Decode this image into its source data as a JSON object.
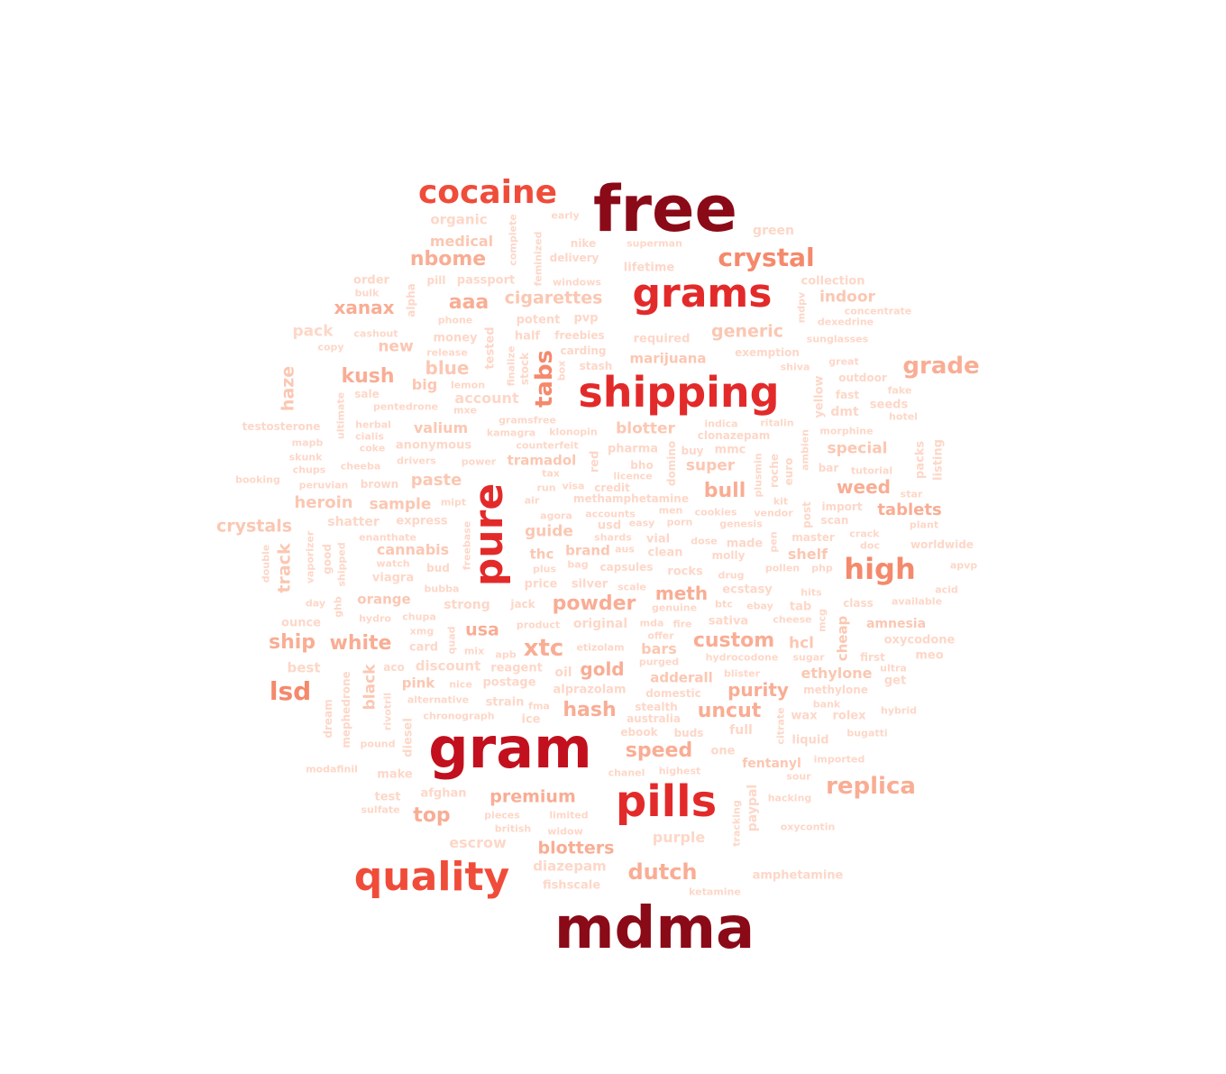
{
  "colors": {
    "t1": "#8b0a18",
    "t2": "#c2101e",
    "t3": "#e32a2a",
    "t4": "#f04c3a",
    "t5": "#f5896c",
    "t6": "#f9ad94",
    "t7": "#fbc7b2",
    "t8": "#fdd7c8"
  },
  "words": [
    {
      "text": "free",
      "tier": "t1"
    },
    {
      "text": "mdma",
      "tier": "t1"
    },
    {
      "text": "gram",
      "tier": "t2"
    },
    {
      "text": "pills",
      "tier": "t3"
    },
    {
      "text": "shipping",
      "tier": "t3"
    },
    {
      "text": "grams",
      "tier": "t3"
    },
    {
      "text": "pure",
      "tier": "t3"
    },
    {
      "text": "cocaine",
      "tier": "t4"
    },
    {
      "text": "quality",
      "tier": "t4"
    },
    {
      "text": "crystal",
      "tier": "t5"
    },
    {
      "text": "high",
      "tier": "t5"
    },
    {
      "text": "replica",
      "tier": "t6"
    },
    {
      "text": "grade",
      "tier": "t6"
    },
    {
      "text": "lsd",
      "tier": "t5"
    },
    {
      "text": "nbome",
      "tier": "t6"
    },
    {
      "text": "tabs",
      "tier": "t5"
    },
    {
      "text": "xtc",
      "tier": "t6"
    },
    {
      "text": "hash",
      "tier": "t6"
    },
    {
      "text": "speed",
      "tier": "t6"
    },
    {
      "text": "custom",
      "tier": "t6"
    },
    {
      "text": "ship",
      "tier": "t6"
    },
    {
      "text": "white",
      "tier": "t6"
    },
    {
      "text": "top",
      "tier": "t6"
    },
    {
      "text": "dutch",
      "tier": "t6"
    },
    {
      "text": "premium",
      "tier": "t6"
    },
    {
      "text": "blotters",
      "tier": "t6"
    },
    {
      "text": "kush",
      "tier": "t6"
    },
    {
      "text": "xanax",
      "tier": "t6"
    },
    {
      "text": "aaa",
      "tier": "t6"
    },
    {
      "text": "bull",
      "tier": "t6"
    },
    {
      "text": "weed",
      "tier": "t6"
    },
    {
      "text": "tablets",
      "tier": "t6"
    },
    {
      "text": "powder",
      "tier": "t6"
    },
    {
      "text": "meth",
      "tier": "t6"
    },
    {
      "text": "gold",
      "tier": "t6"
    },
    {
      "text": "uncut",
      "tier": "t6"
    },
    {
      "text": "purity",
      "tier": "t6"
    },
    {
      "text": "usa",
      "tier": "t6"
    },
    {
      "text": "cigarettes",
      "tier": "t7"
    },
    {
      "text": "blue",
      "tier": "t7"
    },
    {
      "text": "generic",
      "tier": "t7"
    },
    {
      "text": "heroin",
      "tier": "t7"
    },
    {
      "text": "crystals",
      "tier": "t7"
    },
    {
      "text": "sample",
      "tier": "t7"
    },
    {
      "text": "paste",
      "tier": "t7"
    },
    {
      "text": "haze",
      "tier": "t7"
    },
    {
      "text": "track",
      "tier": "t7"
    },
    {
      "text": "medical",
      "tier": "t7"
    },
    {
      "text": "organic",
      "tier": "t8"
    },
    {
      "text": "indoor",
      "tier": "t7"
    },
    {
      "text": "special",
      "tier": "t7"
    },
    {
      "text": "super",
      "tier": "t7"
    },
    {
      "text": "blotter",
      "tier": "t7"
    },
    {
      "text": "valium",
      "tier": "t7"
    },
    {
      "text": "cannabis",
      "tier": "t7"
    },
    {
      "text": "guide",
      "tier": "t7"
    },
    {
      "text": "pack",
      "tier": "t8"
    },
    {
      "text": "new",
      "tier": "t7"
    },
    {
      "text": "account",
      "tier": "t8"
    },
    {
      "text": "hcl",
      "tier": "t7"
    },
    {
      "text": "bars",
      "tier": "t7"
    },
    {
      "text": "ethylone",
      "tier": "t7"
    },
    {
      "text": "shelf",
      "tier": "t7"
    },
    {
      "text": "amnesia",
      "tier": "t7"
    },
    {
      "text": "orange",
      "tier": "t7"
    },
    {
      "text": "thc",
      "tier": "t7"
    },
    {
      "text": "brand",
      "tier": "t7"
    },
    {
      "text": "escrow",
      "tier": "t8"
    },
    {
      "text": "purple",
      "tier": "t8"
    },
    {
      "text": "diazepam",
      "tier": "t8"
    },
    {
      "text": "marijuana",
      "tier": "t7"
    },
    {
      "text": "big",
      "tier": "t7"
    },
    {
      "text": "black",
      "tier": "t7"
    },
    {
      "text": "pink",
      "tier": "t7"
    },
    {
      "text": "best",
      "tier": "t8"
    },
    {
      "text": "cheap",
      "tier": "t7"
    },
    {
      "text": "tramadol",
      "tier": "t7"
    },
    {
      "text": "fentanyl",
      "tier": "t7"
    },
    {
      "text": "adderall",
      "tier": "t7"
    },
    {
      "text": "original",
      "tier": "t8"
    },
    {
      "text": "discount",
      "tier": "t8"
    },
    {
      "text": "shatter",
      "tier": "t8"
    },
    {
      "text": "green",
      "tier": "t8"
    },
    {
      "text": "lifetime",
      "tier": "t8"
    },
    {
      "text": "collection",
      "tier": "t8"
    },
    {
      "text": "order",
      "tier": "t8"
    },
    {
      "text": "pill",
      "tier": "t8"
    },
    {
      "text": "passport",
      "tier": "t8"
    },
    {
      "text": "superman",
      "tier": "t8"
    },
    {
      "text": "nike",
      "tier": "t8"
    },
    {
      "text": "delivery",
      "tier": "t8"
    },
    {
      "text": "windows",
      "tier": "t8"
    },
    {
      "text": "bulk",
      "tier": "t8"
    },
    {
      "text": "phone",
      "tier": "t8"
    },
    {
      "text": "potent",
      "tier": "t8"
    },
    {
      "text": "pvp",
      "tier": "t8"
    },
    {
      "text": "concentrate",
      "tier": "t8"
    },
    {
      "text": "dexedrine",
      "tier": "t8"
    },
    {
      "text": "cashout",
      "tier": "t8"
    },
    {
      "text": "money",
      "tier": "t8"
    },
    {
      "text": "half",
      "tier": "t8"
    },
    {
      "text": "freebies",
      "tier": "t8"
    },
    {
      "text": "required",
      "tier": "t8"
    },
    {
      "text": "sunglasses",
      "tier": "t8"
    },
    {
      "text": "copy",
      "tier": "t8"
    },
    {
      "text": "release",
      "tier": "t8"
    },
    {
      "text": "carding",
      "tier": "t8"
    },
    {
      "text": "exemption",
      "tier": "t8"
    },
    {
      "text": "great",
      "tier": "t8"
    },
    {
      "text": "shiva",
      "tier": "t8"
    },
    {
      "text": "stash",
      "tier": "t8"
    },
    {
      "text": "outdoor",
      "tier": "t8"
    },
    {
      "text": "lemon",
      "tier": "t8"
    },
    {
      "text": "sale",
      "tier": "t8"
    },
    {
      "text": "fake",
      "tier": "t8"
    },
    {
      "text": "fast",
      "tier": "t8"
    },
    {
      "text": "seeds",
      "tier": "t8"
    },
    {
      "text": "pentedrone",
      "tier": "t8"
    },
    {
      "text": "mxe",
      "tier": "t8"
    },
    {
      "text": "dmt",
      "tier": "t8"
    },
    {
      "text": "hotel",
      "tier": "t8"
    },
    {
      "text": "gramsfree",
      "tier": "t8"
    },
    {
      "text": "indica",
      "tier": "t8"
    },
    {
      "text": "ritalin",
      "tier": "t8"
    },
    {
      "text": "testosterone",
      "tier": "t8"
    },
    {
      "text": "herbal",
      "tier": "t8"
    },
    {
      "text": "kamagra",
      "tier": "t8"
    },
    {
      "text": "klonopin",
      "tier": "t8"
    },
    {
      "text": "clonazepam",
      "tier": "t8"
    },
    {
      "text": "morphine",
      "tier": "t8"
    },
    {
      "text": "cialis",
      "tier": "t8"
    },
    {
      "text": "mapb",
      "tier": "t8"
    },
    {
      "text": "coke",
      "tier": "t8"
    },
    {
      "text": "anonymous",
      "tier": "t8"
    },
    {
      "text": "counterfeit",
      "tier": "t8"
    },
    {
      "text": "pharma",
      "tier": "t8"
    },
    {
      "text": "buy",
      "tier": "t8"
    },
    {
      "text": "mmc",
      "tier": "t8"
    },
    {
      "text": "skunk",
      "tier": "t8"
    },
    {
      "text": "drivers",
      "tier": "t8"
    },
    {
      "text": "power",
      "tier": "t8"
    },
    {
      "text": "bho",
      "tier": "t8"
    },
    {
      "text": "bar",
      "tier": "t8"
    },
    {
      "text": "tutorial",
      "tier": "t8"
    },
    {
      "text": "chups",
      "tier": "t8"
    },
    {
      "text": "cheeba",
      "tier": "t8"
    },
    {
      "text": "tax",
      "tier": "t8"
    },
    {
      "text": "licence",
      "tier": "t8"
    },
    {
      "text": "booking",
      "tier": "t8"
    },
    {
      "text": "peruvian",
      "tier": "t8"
    },
    {
      "text": "brown",
      "tier": "t8"
    },
    {
      "text": "run",
      "tier": "t8"
    },
    {
      "text": "visa",
      "tier": "t8"
    },
    {
      "text": "credit",
      "tier": "t8"
    },
    {
      "text": "kit",
      "tier": "t8"
    },
    {
      "text": "star",
      "tier": "t8"
    },
    {
      "text": "mipt",
      "tier": "t8"
    },
    {
      "text": "air",
      "tier": "t8"
    },
    {
      "text": "methamphetamine",
      "tier": "t8"
    },
    {
      "text": "import",
      "tier": "t8"
    },
    {
      "text": "express",
      "tier": "t8"
    },
    {
      "text": "agora",
      "tier": "t8"
    },
    {
      "text": "accounts",
      "tier": "t8"
    },
    {
      "text": "men",
      "tier": "t8"
    },
    {
      "text": "cookies",
      "tier": "t8"
    },
    {
      "text": "vendor",
      "tier": "t8"
    },
    {
      "text": "scan",
      "tier": "t8"
    },
    {
      "text": "plant",
      "tier": "t8"
    },
    {
      "text": "usd",
      "tier": "t8"
    },
    {
      "text": "easy",
      "tier": "t8"
    },
    {
      "text": "porn",
      "tier": "t8"
    },
    {
      "text": "genesis",
      "tier": "t8"
    },
    {
      "text": "enanthate",
      "tier": "t8"
    },
    {
      "text": "shards",
      "tier": "t8"
    },
    {
      "text": "vial",
      "tier": "t8"
    },
    {
      "text": "dose",
      "tier": "t8"
    },
    {
      "text": "made",
      "tier": "t8"
    },
    {
      "text": "master",
      "tier": "t8"
    },
    {
      "text": "crack",
      "tier": "t8"
    },
    {
      "text": "doc",
      "tier": "t8"
    },
    {
      "text": "worldwide",
      "tier": "t8"
    },
    {
      "text": "aus",
      "tier": "t8"
    },
    {
      "text": "clean",
      "tier": "t8"
    },
    {
      "text": "molly",
      "tier": "t8"
    },
    {
      "text": "watch",
      "tier": "t8"
    },
    {
      "text": "plus",
      "tier": "t8"
    },
    {
      "text": "bag",
      "tier": "t8"
    },
    {
      "text": "capsules",
      "tier": "t8"
    },
    {
      "text": "rocks",
      "tier": "t8"
    },
    {
      "text": "drug",
      "tier": "t8"
    },
    {
      "text": "pollen",
      "tier": "t8"
    },
    {
      "text": "php",
      "tier": "t8"
    },
    {
      "text": "apvp",
      "tier": "t8"
    },
    {
      "text": "bud",
      "tier": "t8"
    },
    {
      "text": "viagra",
      "tier": "t8"
    },
    {
      "text": "price",
      "tier": "t8"
    },
    {
      "text": "silver",
      "tier": "t8"
    },
    {
      "text": "scale",
      "tier": "t8"
    },
    {
      "text": "bubba",
      "tier": "t8"
    },
    {
      "text": "hits",
      "tier": "t8"
    },
    {
      "text": "acid",
      "tier": "t8"
    },
    {
      "text": "day",
      "tier": "t8"
    },
    {
      "text": "strong",
      "tier": "t8"
    },
    {
      "text": "jack",
      "tier": "t8"
    },
    {
      "text": "genuine",
      "tier": "t8"
    },
    {
      "text": "btc",
      "tier": "t8"
    },
    {
      "text": "ecstasy",
      "tier": "t8"
    },
    {
      "text": "ebay",
      "tier": "t8"
    },
    {
      "text": "tab",
      "tier": "t8"
    },
    {
      "text": "class",
      "tier": "t8"
    },
    {
      "text": "available",
      "tier": "t8"
    },
    {
      "text": "hydro",
      "tier": "t8"
    },
    {
      "text": "chupa",
      "tier": "t8"
    },
    {
      "text": "product",
      "tier": "t8"
    },
    {
      "text": "mda",
      "tier": "t8"
    },
    {
      "text": "fire",
      "tier": "t8"
    },
    {
      "text": "sativa",
      "tier": "t8"
    },
    {
      "text": "cheese",
      "tier": "t8"
    },
    {
      "text": "ounce",
      "tier": "t8"
    },
    {
      "text": "xmg",
      "tier": "t8"
    },
    {
      "text": "offer",
      "tier": "t8"
    },
    {
      "text": "oxycodone",
      "tier": "t8"
    },
    {
      "text": "card",
      "tier": "t8"
    },
    {
      "text": "mix",
      "tier": "t8"
    },
    {
      "text": "apb",
      "tier": "t8"
    },
    {
      "text": "etizolam",
      "tier": "t8"
    },
    {
      "text": "purged",
      "tier": "t8"
    },
    {
      "text": "hydrocodone",
      "tier": "t8"
    },
    {
      "text": "sugar",
      "tier": "t8"
    },
    {
      "text": "first",
      "tier": "t8"
    },
    {
      "text": "meo",
      "tier": "t8"
    },
    {
      "text": "aco",
      "tier": "t8"
    },
    {
      "text": "reagent",
      "tier": "t8"
    },
    {
      "text": "oil",
      "tier": "t8"
    },
    {
      "text": "blister",
      "tier": "t8"
    },
    {
      "text": "ultra",
      "tier": "t8"
    },
    {
      "text": "get",
      "tier": "t8"
    },
    {
      "text": "nice",
      "tier": "t8"
    },
    {
      "text": "postage",
      "tier": "t8"
    },
    {
      "text": "alprazolam",
      "tier": "t8"
    },
    {
      "text": "domestic",
      "tier": "t8"
    },
    {
      "text": "methylone",
      "tier": "t8"
    },
    {
      "text": "alternative",
      "tier": "t8"
    },
    {
      "text": "strain",
      "tier": "t8"
    },
    {
      "text": "fma",
      "tier": "t8"
    },
    {
      "text": "stealth",
      "tier": "t8"
    },
    {
      "text": "bank",
      "tier": "t8"
    },
    {
      "text": "hybrid",
      "tier": "t8"
    },
    {
      "text": "chronograph",
      "tier": "t8"
    },
    {
      "text": "ice",
      "tier": "t8"
    },
    {
      "text": "australia",
      "tier": "t8"
    },
    {
      "text": "wax",
      "tier": "t8"
    },
    {
      "text": "rolex",
      "tier": "t8"
    },
    {
      "text": "ebook",
      "tier": "t8"
    },
    {
      "text": "buds",
      "tier": "t8"
    },
    {
      "text": "full",
      "tier": "t8"
    },
    {
      "text": "bugatti",
      "tier": "t8"
    },
    {
      "text": "pound",
      "tier": "t8"
    },
    {
      "text": "liquid",
      "tier": "t8"
    },
    {
      "text": "one",
      "tier": "t8"
    },
    {
      "text": "imported",
      "tier": "t8"
    },
    {
      "text": "modafinil",
      "tier": "t8"
    },
    {
      "text": "make",
      "tier": "t8"
    },
    {
      "text": "chanel",
      "tier": "t8"
    },
    {
      "text": "highest",
      "tier": "t8"
    },
    {
      "text": "sour",
      "tier": "t8"
    },
    {
      "text": "test",
      "tier": "t8"
    },
    {
      "text": "afghan",
      "tier": "t8"
    },
    {
      "text": "hacking",
      "tier": "t8"
    },
    {
      "text": "sulfate",
      "tier": "t8"
    },
    {
      "text": "pieces",
      "tier": "t8"
    },
    {
      "text": "limited",
      "tier": "t8"
    },
    {
      "text": "oxycontin",
      "tier": "t8"
    },
    {
      "text": "british",
      "tier": "t8"
    },
    {
      "text": "widow",
      "tier": "t8"
    },
    {
      "text": "fishscale",
      "tier": "t8"
    },
    {
      "text": "amphetamine",
      "tier": "t8"
    },
    {
      "text": "ketamine",
      "tier": "t8"
    },
    {
      "text": "early",
      "tier": "t8"
    },
    {
      "text": "complete",
      "tier": "t8"
    },
    {
      "text": "feminized",
      "tier": "t8"
    },
    {
      "text": "alpha",
      "tier": "t8"
    },
    {
      "text": "tested",
      "tier": "t8"
    },
    {
      "text": "finalize",
      "tier": "t8"
    },
    {
      "text": "stock",
      "tier": "t8"
    },
    {
      "text": "box",
      "tier": "t8"
    },
    {
      "text": "mdpv",
      "tier": "t8"
    },
    {
      "text": "yellow",
      "tier": "t8"
    },
    {
      "text": "ultimate",
      "tier": "t8"
    },
    {
      "text": "red",
      "tier": "t8"
    },
    {
      "text": "domino",
      "tier": "t8"
    },
    {
      "text": "plusmin",
      "tier": "t8"
    },
    {
      "text": "roche",
      "tier": "t8"
    },
    {
      "text": "euro",
      "tier": "t8"
    },
    {
      "text": "ambien",
      "tier": "t8"
    },
    {
      "text": "packs",
      "tier": "t8"
    },
    {
      "text": "listing",
      "tier": "t8"
    },
    {
      "text": "post",
      "tier": "t8"
    },
    {
      "text": "freebase",
      "tier": "t8"
    },
    {
      "text": "vaporizer",
      "tier": "t8"
    },
    {
      "text": "good",
      "tier": "t8"
    },
    {
      "text": "shipped",
      "tier": "t8"
    },
    {
      "text": "double",
      "tier": "t8"
    },
    {
      "text": "pen",
      "tier": "t8"
    },
    {
      "text": "ghb",
      "tier": "t8"
    },
    {
      "text": "quad",
      "tier": "t8"
    },
    {
      "text": "mcg",
      "tier": "t8"
    },
    {
      "text": "dream",
      "tier": "t8"
    },
    {
      "text": "mephedrone",
      "tier": "t8"
    },
    {
      "text": "rivotril",
      "tier": "t8"
    },
    {
      "text": "diesel",
      "tier": "t8"
    },
    {
      "text": "citrate",
      "tier": "t8"
    },
    {
      "text": "tracking",
      "tier": "t8"
    },
    {
      "text": "paypal",
      "tier": "t8"
    }
  ]
}
